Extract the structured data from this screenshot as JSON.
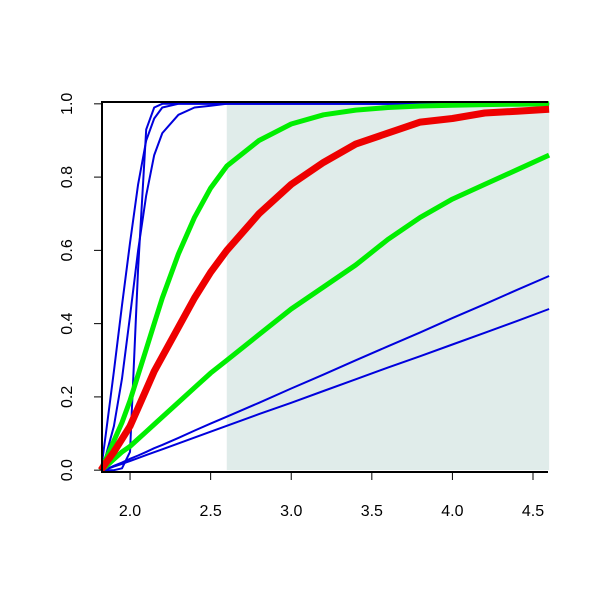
{
  "chart_data": {
    "type": "line",
    "x": [
      1.82,
      1.85,
      1.9,
      1.95,
      2.0,
      2.05,
      2.1,
      2.15,
      2.2,
      2.3,
      2.4,
      2.5,
      2.6,
      2.8,
      3.0,
      3.2,
      3.4,
      3.6,
      3.8,
      4.0,
      4.2,
      4.4,
      4.6
    ],
    "series": [
      {
        "color": "#0000dd",
        "values": [
          0,
          0.002,
          0.012,
          0.021,
          0.031,
          0.04,
          0.05,
          0.06,
          0.069,
          0.088,
          0.108,
          0.127,
          0.146,
          0.184,
          0.223,
          0.261,
          0.3,
          0.338,
          0.376,
          0.415,
          0.453,
          0.492,
          0.53
        ]
      },
      {
        "color": "#0000dd",
        "values": [
          0,
          0.002,
          0.01,
          0.017,
          0.025,
          0.033,
          0.041,
          0.049,
          0.057,
          0.073,
          0.089,
          0.105,
          0.121,
          0.153,
          0.184,
          0.216,
          0.248,
          0.28,
          0.311,
          0.343,
          0.375,
          0.407,
          0.44
        ]
      },
      {
        "color": "#0000dd",
        "values": [
          0,
          0.1,
          0.27,
          0.45,
          0.62,
          0.78,
          0.9,
          0.96,
          0.99,
          1,
          1,
          1,
          1,
          1,
          1,
          1,
          1,
          1,
          1,
          1,
          1,
          1,
          1
        ]
      },
      {
        "color": "#0000dd",
        "values": [
          0,
          0,
          0,
          0.005,
          0.05,
          0.55,
          0.93,
          0.99,
          1,
          1,
          1,
          1,
          1,
          1,
          1,
          1,
          1,
          1,
          1,
          1,
          1,
          1,
          1
        ]
      },
      {
        "color": "#0000dd",
        "values": [
          0,
          0.04,
          0.12,
          0.25,
          0.42,
          0.6,
          0.75,
          0.86,
          0.92,
          0.97,
          0.99,
          0.995,
          1,
          1,
          1,
          1,
          1,
          1,
          1,
          1,
          1,
          1,
          1
        ]
      },
      {
        "color": "#00ee00",
        "values": [
          0,
          0.01,
          0.03,
          0.05,
          0.065,
          0.085,
          0.105,
          0.125,
          0.145,
          0.185,
          0.225,
          0.265,
          0.3,
          0.37,
          0.44,
          0.5,
          0.56,
          0.63,
          0.69,
          0.74,
          0.78,
          0.82,
          0.86
        ]
      },
      {
        "color": "#00ee00",
        "values": [
          0,
          0.03,
          0.08,
          0.13,
          0.19,
          0.26,
          0.33,
          0.4,
          0.47,
          0.59,
          0.69,
          0.77,
          0.83,
          0.9,
          0.945,
          0.97,
          0.983,
          0.99,
          0.994,
          0.996,
          0.998,
          0.999,
          1.0
        ]
      },
      {
        "color": "#ee0000",
        "values": [
          0,
          0.02,
          0.05,
          0.085,
          0.12,
          0.17,
          0.22,
          0.27,
          0.31,
          0.39,
          0.47,
          0.54,
          0.6,
          0.7,
          0.78,
          0.84,
          0.89,
          0.92,
          0.95,
          0.96,
          0.975,
          0.98,
          0.985
        ]
      }
    ],
    "shaded_region": {
      "x": [
        2.6,
        4.6
      ],
      "y": [
        0,
        1
      ],
      "color": "#e0ecea"
    },
    "xlim": [
      1.826,
      4.593
    ],
    "ylim": [
      -0.005,
      1.005
    ],
    "xticks": [
      {
        "value": 2.0,
        "label": "2.0"
      },
      2.5,
      {
        "value": 3.0,
        "label": "3.0"
      },
      3.5,
      {
        "value": 4.0,
        "label": "4.0"
      },
      4.5
    ],
    "yticks": [
      {
        "value": 0,
        "label": "0.0"
      },
      0.2,
      0.4,
      0.6,
      0.8,
      {
        "value": 1.0,
        "label": "1.0"
      }
    ]
  }
}
